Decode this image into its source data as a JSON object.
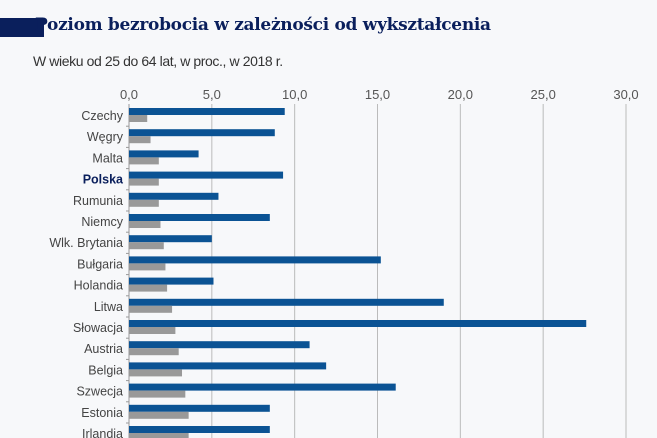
{
  "chart_data": {
    "type": "bar",
    "orientation": "horizontal",
    "title": "Poziom bezrobocia w zależności od wykształcenia",
    "subtitle": "W wieku od 25 do 64 lat, w proc., w 2018 r.",
    "xlim": [
      0,
      30
    ],
    "ticks": [
      "0,0",
      "5,0",
      "10,0",
      "15,0",
      "20,0",
      "25,0",
      "30,0"
    ],
    "tick_values": [
      0,
      5,
      10,
      15,
      20,
      25,
      30
    ],
    "grid": true,
    "highlight": "Polska",
    "categories": [
      "Czechy",
      "Węgry",
      "Malta",
      "Polska",
      "Rumunia",
      "Niemcy",
      "Wlk. Brytania",
      "Bułgaria",
      "Holandia",
      "Litwa",
      "Słowacja",
      "Austria",
      "Belgia",
      "Szwecja",
      "Estonia",
      "Irlandia"
    ],
    "series": [
      {
        "color": "#0b5394",
        "values": [
          9.4,
          8.8,
          4.2,
          9.3,
          5.4,
          8.5,
          5.0,
          15.2,
          5.1,
          19.0,
          27.6,
          10.9,
          11.9,
          16.1,
          8.5,
          8.5
        ]
      },
      {
        "color": "#999999",
        "values": [
          1.1,
          1.3,
          1.8,
          1.8,
          1.8,
          1.9,
          2.1,
          2.2,
          2.3,
          2.6,
          2.8,
          3.0,
          3.2,
          3.4,
          3.6,
          3.6
        ]
      }
    ]
  }
}
